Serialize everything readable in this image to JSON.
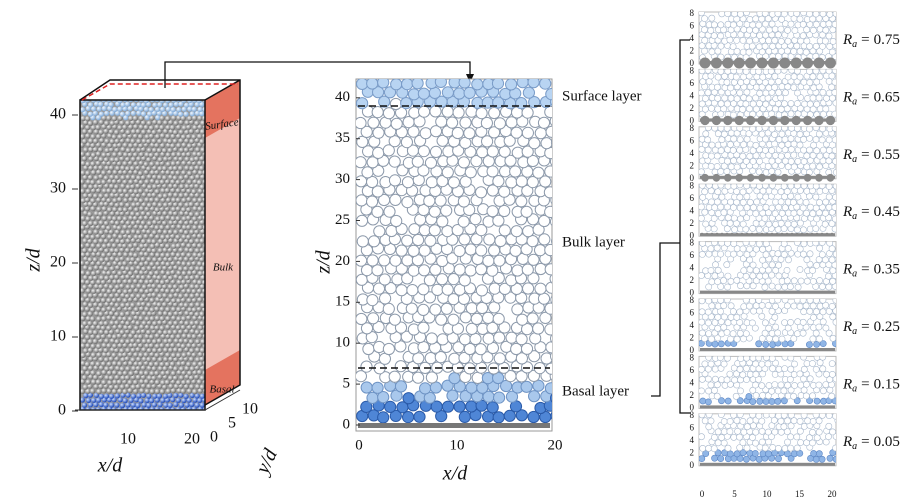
{
  "panel_a": {
    "z_label": "z/d",
    "x_label": "x/d",
    "y_label": "y/d",
    "z_ticks": [
      "0",
      "10",
      "20",
      "30",
      "40"
    ],
    "x_ticks": [
      "10",
      "20"
    ],
    "y_ticks": [
      "0",
      "5",
      "10"
    ],
    "regions": [
      "Surface",
      "Bulk",
      "Basal"
    ]
  },
  "panel_b": {
    "z_label": "z/d",
    "x_label": "x/d",
    "z_ticks": [
      "0",
      "5",
      "10",
      "15",
      "20",
      "25",
      "30",
      "35",
      "40"
    ],
    "x_ticks": [
      "0",
      "10",
      "20"
    ],
    "layers": [
      "Surface layer",
      "Bulk layer",
      "Basal layer"
    ]
  },
  "panel_c": {
    "y_ticks": [
      "0",
      "2",
      "4",
      "6",
      "8"
    ],
    "x_ticks": [
      "0",
      "5",
      "10",
      "15",
      "20"
    ],
    "cases": [
      {
        "symbol": "R",
        "subscript": "a",
        "relation": "=",
        "value": "0.75"
      },
      {
        "symbol": "R",
        "subscript": "a",
        "relation": "=",
        "value": "0.65"
      },
      {
        "symbol": "R",
        "subscript": "a",
        "relation": "=",
        "value": "0.55"
      },
      {
        "symbol": "R",
        "subscript": "a",
        "relation": "=",
        "value": "0.45"
      },
      {
        "symbol": "R",
        "subscript": "a",
        "relation": "=",
        "value": "0.35"
      },
      {
        "symbol": "R",
        "subscript": "a",
        "relation": "=",
        "value": "0.25"
      },
      {
        "symbol": "R",
        "subscript": "a",
        "relation": "=",
        "value": "0.15"
      },
      {
        "symbol": "R",
        "subscript": "a",
        "relation": "=",
        "value": "0.05"
      }
    ]
  }
}
